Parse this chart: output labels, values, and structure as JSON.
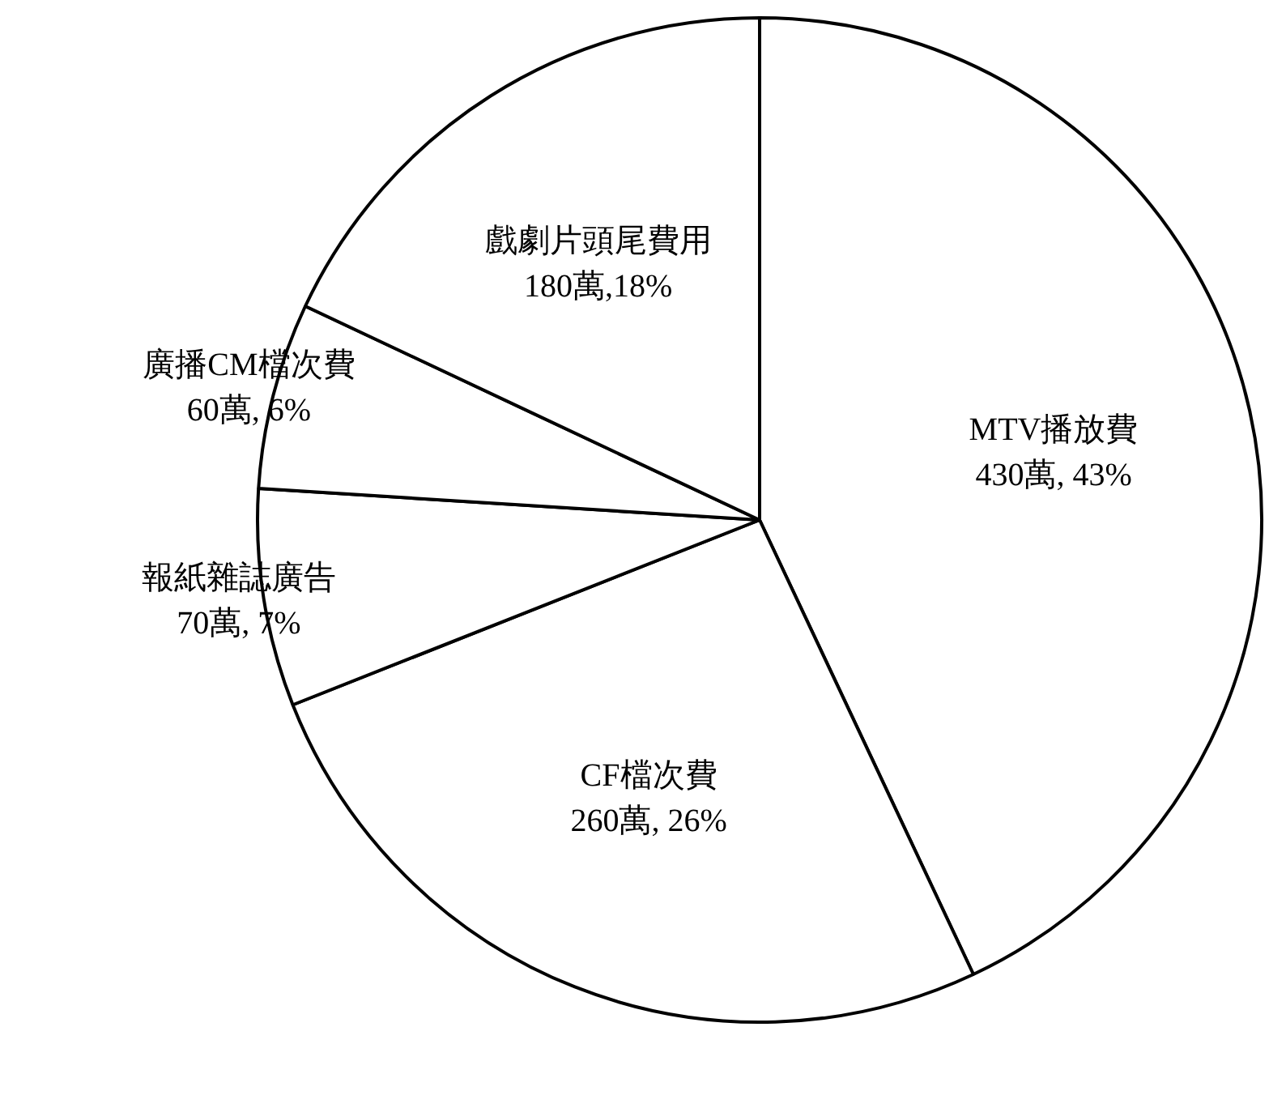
{
  "chart_data": {
    "type": "pie",
    "categories": [
      "MTV播放費",
      "CF檔次費",
      "報紙雜誌廣告",
      "廣播CM檔次費",
      "戲劇片頭尾費用"
    ],
    "values": [
      430,
      260,
      70,
      60,
      180
    ],
    "value_labels": [
      "430萬, 43%",
      "260萬, 26%",
      "70萬, 7%",
      "60萬, 6%",
      "180萬,18%"
    ],
    "colors": [
      "#ffffff",
      "#ffffff",
      "#ffffff",
      "#ffffff",
      "#ffffff"
    ],
    "legend": false
  }
}
